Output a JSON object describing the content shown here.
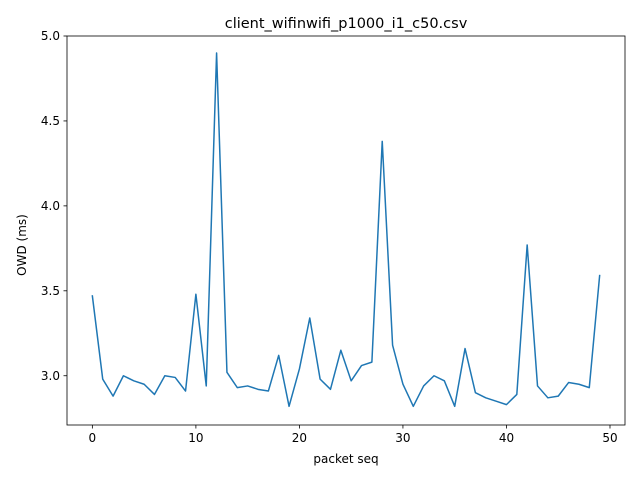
{
  "chart_data": {
    "type": "line",
    "title": "client_wifinwifi_p1000_i1_c50.csv",
    "xlabel": "packet seq",
    "ylabel": "OWD (ms)",
    "xlim": [
      -2.45,
      51.45
    ],
    "ylim": [
      2.71,
      5.0
    ],
    "xticks": [
      0,
      10,
      20,
      30,
      40,
      50
    ],
    "yticks": [
      3.0,
      3.5,
      4.0,
      4.5,
      5.0
    ],
    "xtick_labels": [
      "0",
      "10",
      "20",
      "30",
      "40",
      "50"
    ],
    "ytick_labels": [
      "3.0",
      "3.5",
      "4.0",
      "4.5",
      "5.0"
    ],
    "grid": false,
    "series": [
      {
        "color": "#1f77b4",
        "x": [
          0,
          1,
          2,
          3,
          4,
          5,
          6,
          7,
          8,
          9,
          10,
          11,
          12,
          13,
          14,
          15,
          16,
          17,
          18,
          19,
          20,
          21,
          22,
          23,
          24,
          25,
          26,
          27,
          28,
          29,
          30,
          31,
          32,
          33,
          34,
          35,
          36,
          37,
          38,
          39,
          40,
          41,
          42,
          43,
          44,
          45,
          46,
          47,
          48,
          49
        ],
        "y": [
          3.47,
          2.98,
          2.88,
          3.0,
          2.97,
          2.95,
          2.89,
          3.0,
          2.99,
          2.91,
          3.48,
          2.94,
          4.9,
          3.02,
          2.93,
          2.94,
          2.92,
          2.91,
          3.12,
          2.82,
          3.04,
          3.34,
          2.98,
          2.92,
          3.15,
          2.97,
          3.06,
          3.08,
          4.38,
          3.18,
          2.95,
          2.82,
          2.94,
          3.0,
          2.97,
          2.82,
          3.16,
          2.9,
          2.87,
          2.85,
          2.83,
          2.89,
          3.77,
          2.94,
          2.87,
          2.88,
          2.96,
          2.95,
          2.93,
          3.59
        ]
      }
    ]
  }
}
